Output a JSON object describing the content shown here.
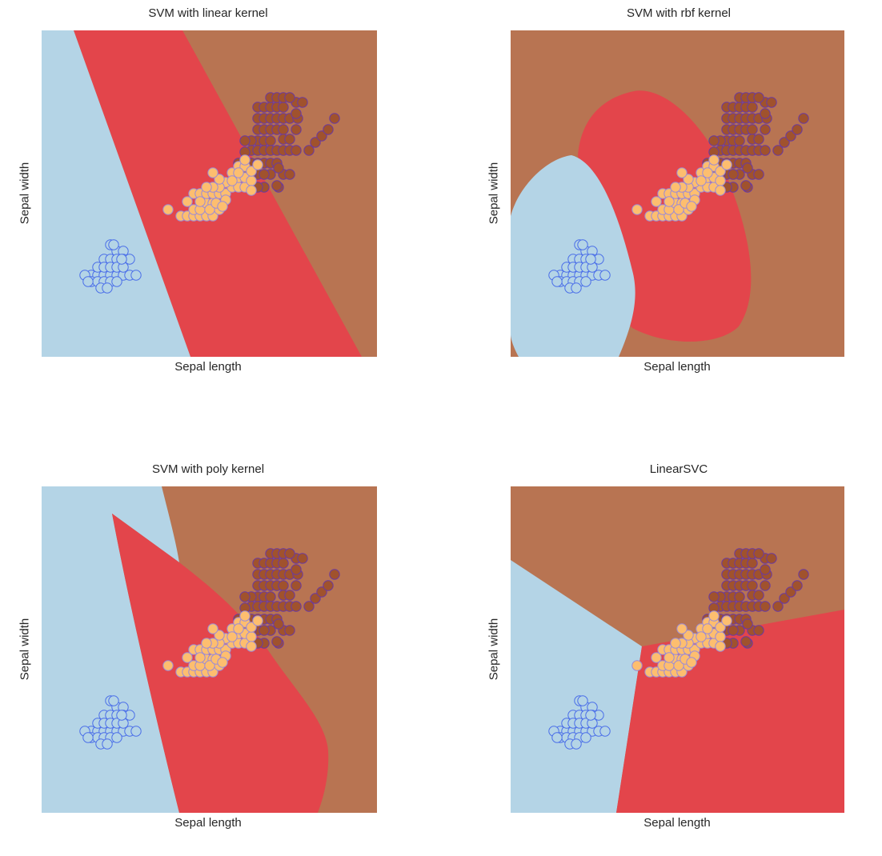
{
  "colors": {
    "region_class0": "#b4d4e6",
    "region_class1": "#e3454b",
    "region_class2": "#b87452",
    "point_class0_fill": "#b4d4e6",
    "point_class0_edge": "#4b6fe8",
    "point_class1_fill": "#fdbe6f",
    "point_class1_edge": "#9b8bd6",
    "point_class2_fill": "#a0522d",
    "point_class2_edge": "#6a3aa0"
  },
  "chart_data": [
    {
      "type": "scatter",
      "title": "SVM with linear kernel",
      "xlabel": "Sepal length",
      "ylabel": "Sepal width",
      "grid": false,
      "ticks": "hidden",
      "decision_regions": [
        "class0 (left)",
        "class1 (middle band)",
        "class2 (right)"
      ]
    },
    {
      "type": "scatter",
      "title": "SVM with rbf kernel",
      "xlabel": "Sepal length",
      "ylabel": "Sepal width",
      "grid": false,
      "ticks": "hidden",
      "decision_regions": [
        "class0 (lower-left ellipse)",
        "class1 (central blob)",
        "class2 (surrounding)"
      ]
    },
    {
      "type": "scatter",
      "title": "SVM with poly kernel",
      "xlabel": "Sepal length",
      "ylabel": "Sepal width",
      "grid": false,
      "ticks": "hidden",
      "decision_regions": [
        "class0 (left)",
        "class1 (wedge)",
        "class2 (upper-right)"
      ]
    },
    {
      "type": "scatter",
      "title": "LinearSVC",
      "xlabel": "Sepal length",
      "ylabel": "Sepal width",
      "grid": false,
      "ticks": "hidden",
      "decision_regions": [
        "class0 (left)",
        "class1 (lower-right)",
        "class2 (top)"
      ]
    }
  ]
}
